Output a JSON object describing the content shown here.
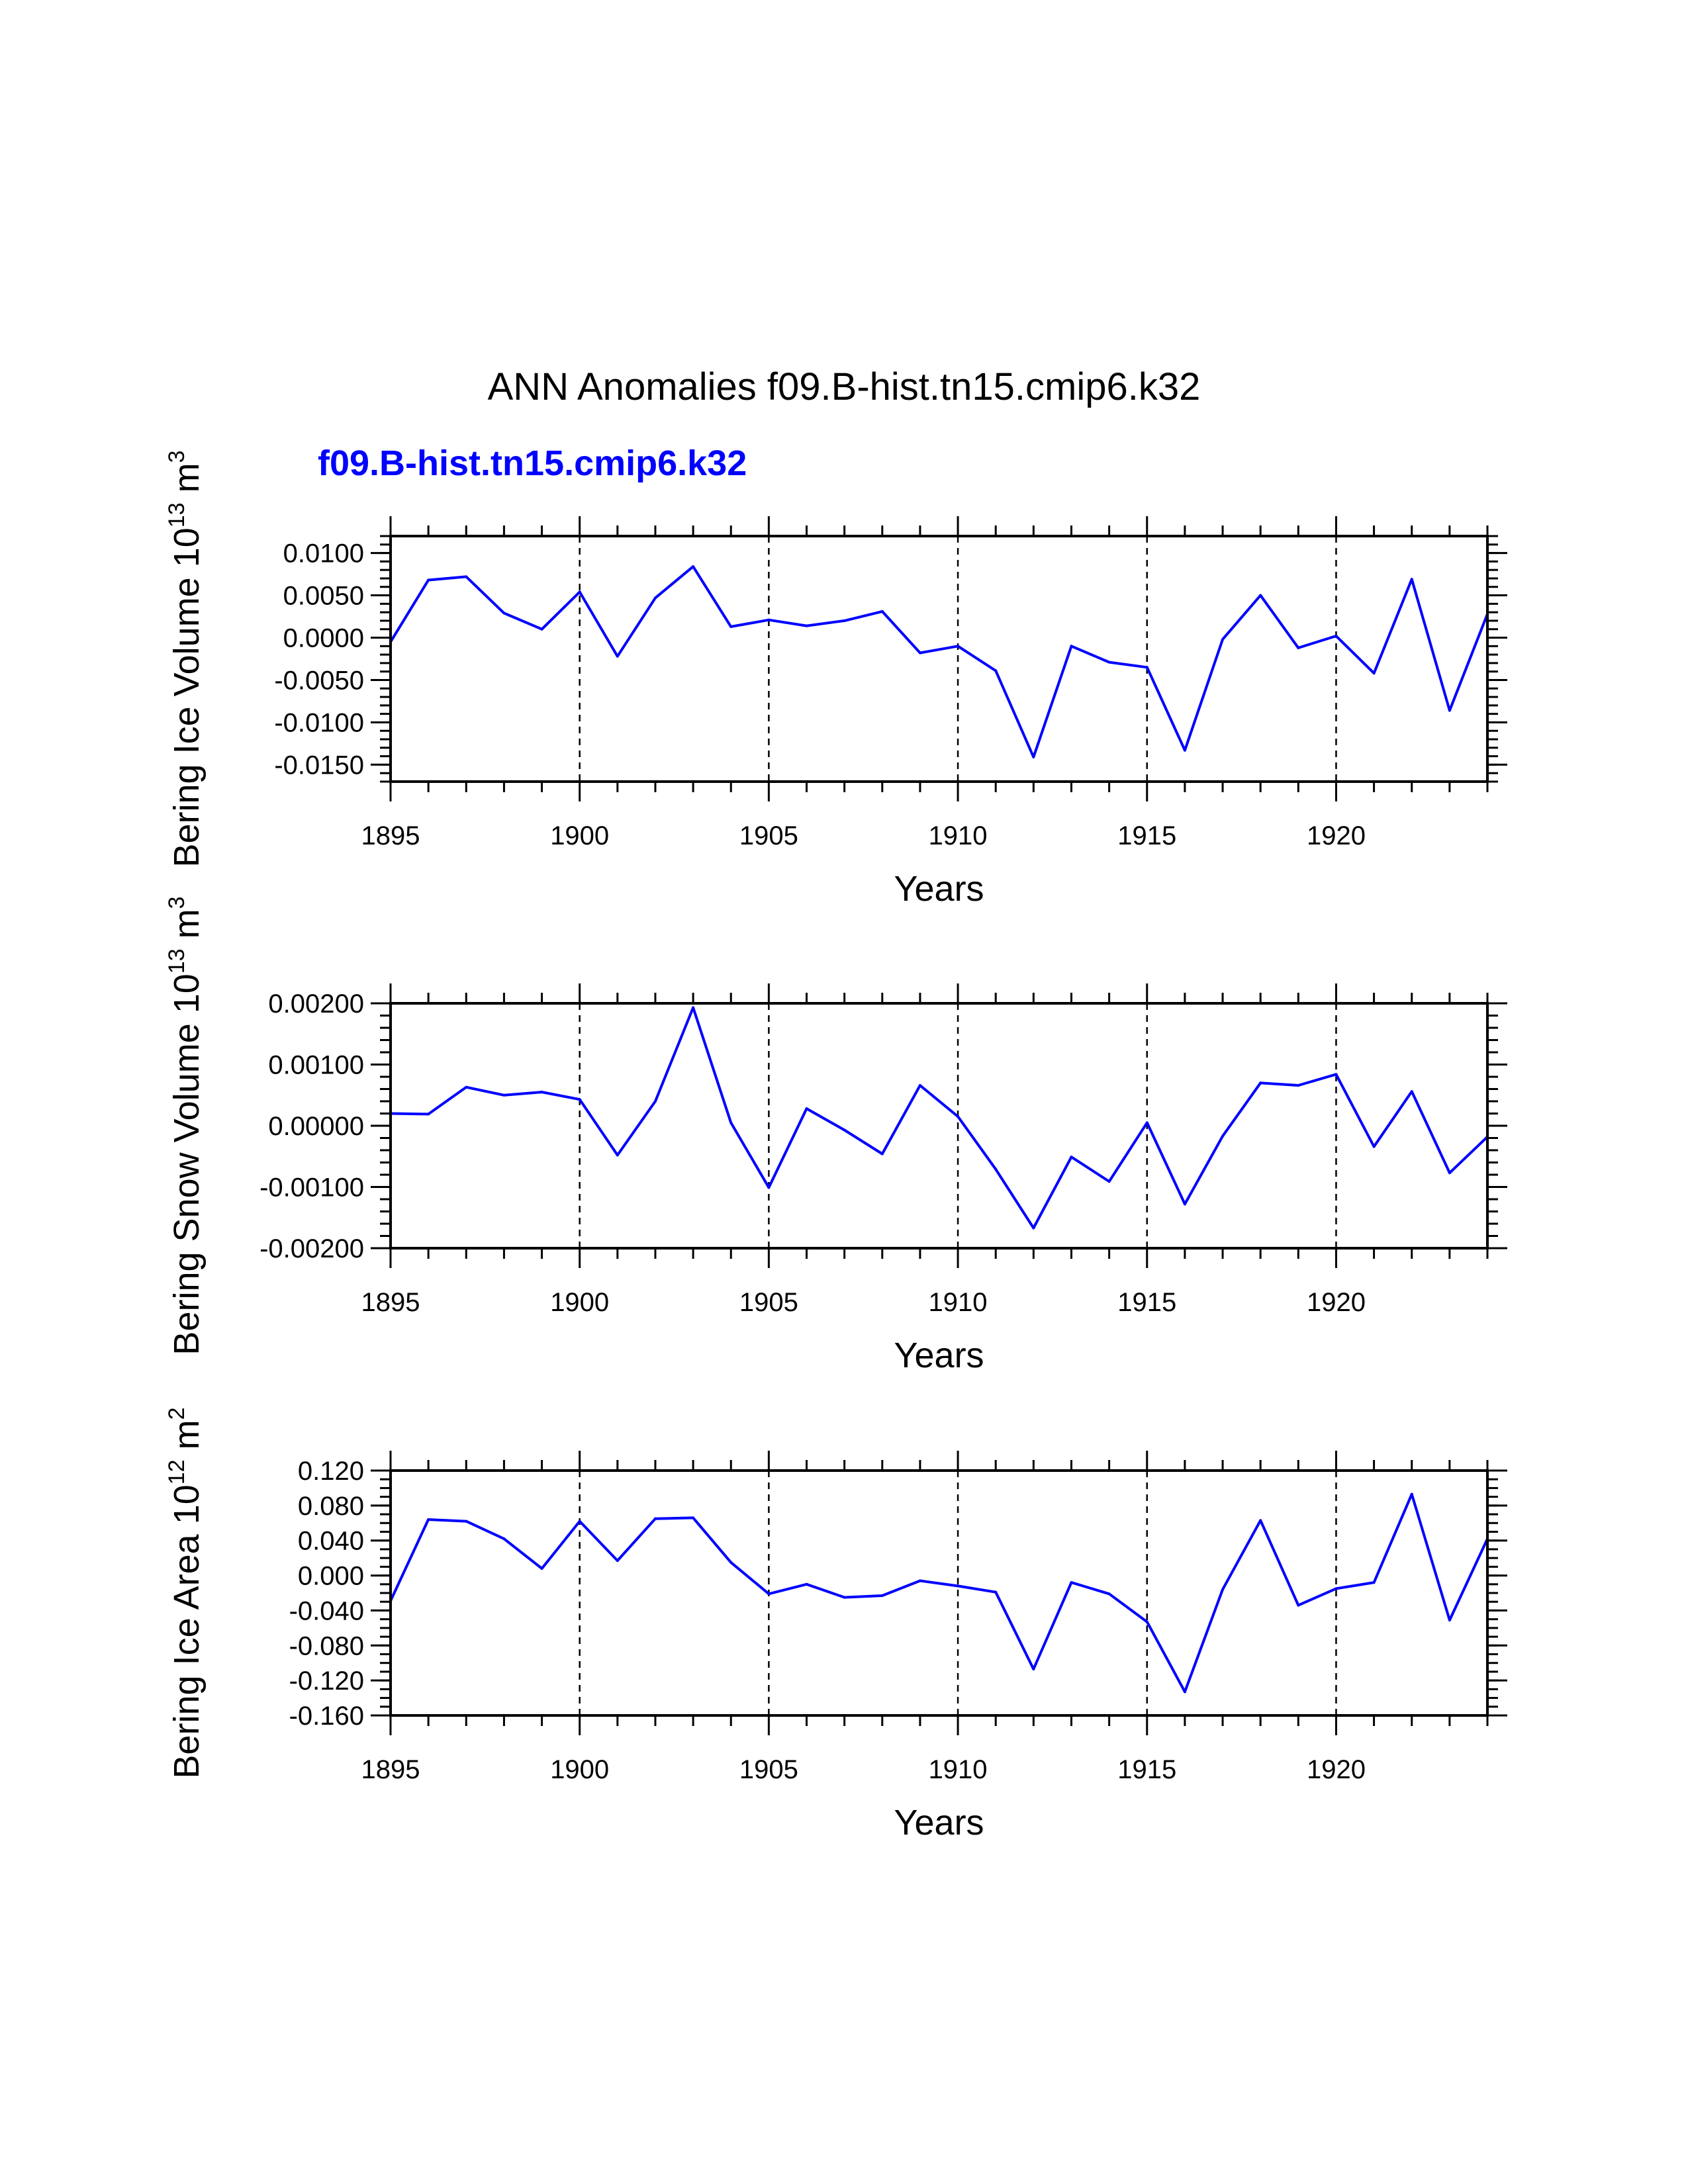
{
  "title": "ANN Anomalies f09.B-hist.tn15.cmip6.k32",
  "legend_label": "f09.B-hist.tn15.cmip6.k32",
  "colors": {
    "series": "#0000ff",
    "axis": "#000000",
    "background": "#ffffff"
  },
  "chart_data": [
    {
      "type": "line",
      "title": "",
      "xlabel": "Years",
      "ylabel": "Bering Ice Volume 10",
      "ylabel_sup": "13",
      "ylabel_unit": "m",
      "ylabel_unit_sup": "3",
      "xlim": [
        1895,
        1924
      ],
      "ylim": [
        -0.017,
        0.012
      ],
      "x_ticks": [
        1895,
        1900,
        1905,
        1910,
        1915,
        1920
      ],
      "x_tick_labels": [
        "1895",
        "1900",
        "1905",
        "1910",
        "1915",
        "1920"
      ],
      "y_ticks": [
        0.01,
        0.005,
        0.0,
        -0.005,
        -0.01,
        -0.015
      ],
      "y_tick_labels": [
        "0.0100",
        "0.0050",
        "0.0000",
        "-0.0050",
        "-0.0100",
        "-0.0150"
      ],
      "y_minor_step": 0.001,
      "grid_x": true,
      "x": [
        1895,
        1896,
        1897,
        1898,
        1899,
        1900,
        1901,
        1902,
        1903,
        1904,
        1905,
        1906,
        1907,
        1908,
        1909,
        1910,
        1911,
        1912,
        1913,
        1914,
        1915,
        1916,
        1917,
        1918,
        1919,
        1920,
        1921,
        1922,
        1923,
        1924
      ],
      "series": [
        {
          "name": "f09.B-hist.tn15.cmip6.k32",
          "values": [
            -0.0005,
            0.0068,
            0.0072,
            0.0029,
            0.001,
            0.0054,
            -0.0022,
            0.0047,
            0.0084,
            0.0013,
            0.0021,
            0.0014,
            0.002,
            0.0031,
            -0.0018,
            -0.001,
            -0.0039,
            -0.0141,
            -0.001,
            -0.0029,
            -0.0035,
            -0.0133,
            -0.0002,
            0.005,
            -0.0012,
            0.0002,
            -0.0042,
            0.0069,
            -0.0086,
            0.0028
          ]
        }
      ]
    },
    {
      "type": "line",
      "title": "",
      "xlabel": "Years",
      "ylabel": "Bering Snow Volume 10",
      "ylabel_sup": "13",
      "ylabel_unit": "m",
      "ylabel_unit_sup": "3",
      "xlim": [
        1895,
        1924
      ],
      "ylim": [
        -0.002,
        0.002
      ],
      "x_ticks": [
        1895,
        1900,
        1905,
        1910,
        1915,
        1920
      ],
      "x_tick_labels": [
        "1895",
        "1900",
        "1905",
        "1910",
        "1915",
        "1920"
      ],
      "y_ticks": [
        0.002,
        0.001,
        0.0,
        -0.001,
        -0.002
      ],
      "y_tick_labels": [
        "0.00200",
        "0.00100",
        "0.00000",
        "-0.00100",
        "-0.00200"
      ],
      "y_minor_step": 0.0002,
      "grid_x": true,
      "x": [
        1895,
        1896,
        1897,
        1898,
        1899,
        1900,
        1901,
        1902,
        1903,
        1904,
        1905,
        1906,
        1907,
        1908,
        1909,
        1910,
        1911,
        1912,
        1913,
        1914,
        1915,
        1916,
        1917,
        1918,
        1919,
        1920,
        1921,
        1922,
        1923,
        1924
      ],
      "series": [
        {
          "name": "f09.B-hist.tn15.cmip6.k32",
          "values": [
            0.0002,
            0.00019,
            0.00063,
            0.0005,
            0.00055,
            0.00043,
            -0.00048,
            0.0004,
            0.00193,
            5e-05,
            -0.00101,
            0.00028,
            -7e-05,
            -0.00046,
            0.00066,
            0.00015,
            -0.00071,
            -0.00167,
            -0.00051,
            -0.00091,
            5e-05,
            -0.00128,
            -0.00017,
            0.0007,
            0.00066,
            0.00084,
            -0.00034,
            0.00056,
            -0.00077,
            -0.00018
          ]
        }
      ]
    },
    {
      "type": "line",
      "title": "",
      "xlabel": "Years",
      "ylabel": "Bering Ice Area 10",
      "ylabel_sup": "12",
      "ylabel_unit": "m",
      "ylabel_unit_sup": "2",
      "xlim": [
        1895,
        1924
      ],
      "ylim": [
        -0.16,
        0.12
      ],
      "x_ticks": [
        1895,
        1900,
        1905,
        1910,
        1915,
        1920
      ],
      "x_tick_labels": [
        "1895",
        "1900",
        "1905",
        "1910",
        "1915",
        "1920"
      ],
      "y_ticks": [
        0.12,
        0.08,
        0.04,
        0.0,
        -0.04,
        -0.08,
        -0.12,
        -0.16
      ],
      "y_tick_labels": [
        "0.120",
        "0.080",
        "0.040",
        "0.000",
        "-0.040",
        "-0.080",
        "-0.120",
        "-0.160"
      ],
      "y_minor_step": 0.01,
      "grid_x": true,
      "x": [
        1895,
        1896,
        1897,
        1898,
        1899,
        1900,
        1901,
        1902,
        1903,
        1904,
        1905,
        1906,
        1907,
        1908,
        1909,
        1910,
        1911,
        1912,
        1913,
        1914,
        1915,
        1916,
        1917,
        1918,
        1919,
        1920,
        1921,
        1922,
        1923,
        1924
      ],
      "series": [
        {
          "name": "f09.B-hist.tn15.cmip6.k32",
          "values": [
            -0.029,
            0.064,
            0.062,
            0.042,
            0.008,
            0.062,
            0.017,
            0.065,
            0.066,
            0.015,
            -0.021,
            -0.01,
            -0.025,
            -0.023,
            -0.006,
            -0.012,
            -0.019,
            -0.107,
            -0.008,
            -0.021,
            -0.053,
            -0.133,
            -0.016,
            0.063,
            -0.034,
            -0.015,
            -0.008,
            0.093,
            -0.051,
            0.042
          ]
        }
      ]
    }
  ]
}
